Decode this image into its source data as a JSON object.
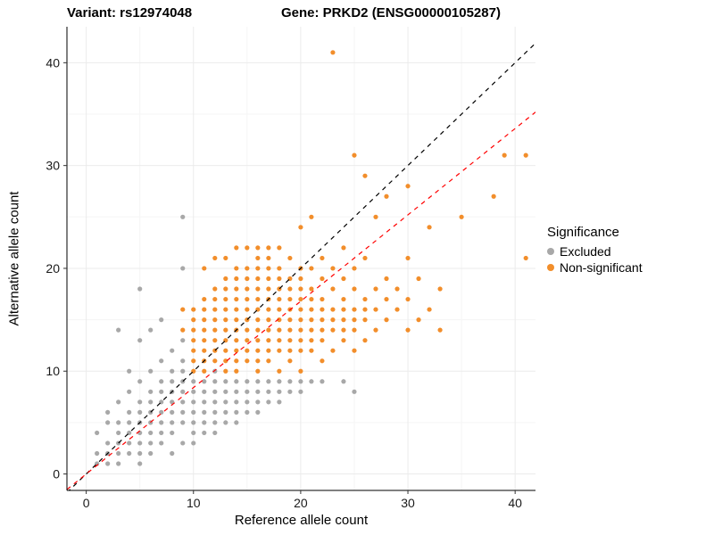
{
  "chart_data": {
    "type": "scatter",
    "title_left": "Variant: rs12974048",
    "title_right": "Gene: PRKD2 (ENSG00000105287)",
    "xlabel": "Reference allele count",
    "ylabel": "Alternative allele count",
    "legend_title": "Significance",
    "legend_position": "right",
    "grid": true,
    "xlim": [
      -1.8,
      41.9
    ],
    "ylim": [
      -1.6,
      43.5
    ],
    "x_ticks": [
      0,
      10,
      20,
      30,
      40
    ],
    "y_ticks": [
      0,
      10,
      20,
      30,
      40
    ],
    "reference_lines": [
      {
        "name": "identity",
        "slope": 1,
        "intercept": 0,
        "color": "#000000",
        "style": "dashed"
      },
      {
        "name": "fit",
        "slope": 0.84,
        "intercept": 0,
        "color": "#FF0000",
        "style": "dashed"
      }
    ],
    "grid_major_color": "#EBEBEB",
    "grid_minor_color": "#F5F5F5",
    "point_radius": 2.6,
    "series": [
      {
        "name": "Excluded",
        "color": "#A8A8A8",
        "points": [
          [
            1,
            1
          ],
          [
            1,
            2
          ],
          [
            1,
            4
          ],
          [
            2,
            1
          ],
          [
            2,
            2
          ],
          [
            2,
            3
          ],
          [
            2,
            5
          ],
          [
            2,
            6
          ],
          [
            3,
            1
          ],
          [
            3,
            2
          ],
          [
            3,
            3
          ],
          [
            3,
            4
          ],
          [
            3,
            5
          ],
          [
            3,
            7
          ],
          [
            3,
            14
          ],
          [
            4,
            2
          ],
          [
            4,
            3
          ],
          [
            4,
            4
          ],
          [
            4,
            5
          ],
          [
            4,
            6
          ],
          [
            4,
            8
          ],
          [
            4,
            10
          ],
          [
            5,
            1
          ],
          [
            5,
            2
          ],
          [
            5,
            3
          ],
          [
            5,
            4
          ],
          [
            5,
            5
          ],
          [
            5,
            6
          ],
          [
            5,
            7
          ],
          [
            5,
            9
          ],
          [
            5,
            13
          ],
          [
            5,
            18
          ],
          [
            6,
            2
          ],
          [
            6,
            3
          ],
          [
            6,
            4
          ],
          [
            6,
            5
          ],
          [
            6,
            6
          ],
          [
            6,
            7
          ],
          [
            6,
            8
          ],
          [
            6,
            10
          ],
          [
            6,
            14
          ],
          [
            7,
            3
          ],
          [
            7,
            4
          ],
          [
            7,
            5
          ],
          [
            7,
            6
          ],
          [
            7,
            7
          ],
          [
            7,
            8
          ],
          [
            7,
            9
          ],
          [
            7,
            11
          ],
          [
            7,
            15
          ],
          [
            8,
            2
          ],
          [
            8,
            4
          ],
          [
            8,
            5
          ],
          [
            8,
            6
          ],
          [
            8,
            7
          ],
          [
            8,
            8
          ],
          [
            8,
            9
          ],
          [
            8,
            10
          ],
          [
            8,
            12
          ],
          [
            9,
            3
          ],
          [
            9,
            5
          ],
          [
            9,
            6
          ],
          [
            9,
            7
          ],
          [
            9,
            8
          ],
          [
            9,
            9
          ],
          [
            9,
            10
          ],
          [
            9,
            11
          ],
          [
            9,
            13
          ],
          [
            9,
            20
          ],
          [
            9,
            25
          ],
          [
            10,
            3
          ],
          [
            10,
            4
          ],
          [
            10,
            5
          ],
          [
            10,
            6
          ],
          [
            10,
            7
          ],
          [
            10,
            8
          ],
          [
            10,
            9
          ],
          [
            11,
            4
          ],
          [
            11,
            5
          ],
          [
            11,
            6
          ],
          [
            11,
            7
          ],
          [
            11,
            8
          ],
          [
            11,
            9
          ],
          [
            12,
            4
          ],
          [
            12,
            5
          ],
          [
            12,
            6
          ],
          [
            12,
            7
          ],
          [
            12,
            8
          ],
          [
            12,
            9
          ],
          [
            12,
            10
          ],
          [
            13,
            5
          ],
          [
            13,
            6
          ],
          [
            13,
            7
          ],
          [
            13,
            8
          ],
          [
            13,
            9
          ],
          [
            14,
            5
          ],
          [
            14,
            6
          ],
          [
            14,
            7
          ],
          [
            14,
            8
          ],
          [
            14,
            9
          ],
          [
            15,
            6
          ],
          [
            15,
            7
          ],
          [
            15,
            8
          ],
          [
            15,
            9
          ],
          [
            16,
            6
          ],
          [
            16,
            7
          ],
          [
            16,
            8
          ],
          [
            16,
            9
          ],
          [
            17,
            7
          ],
          [
            17,
            8
          ],
          [
            17,
            9
          ],
          [
            18,
            7
          ],
          [
            18,
            8
          ],
          [
            18,
            9
          ],
          [
            19,
            8
          ],
          [
            19,
            9
          ],
          [
            20,
            8
          ],
          [
            20,
            9
          ],
          [
            21,
            9
          ],
          [
            22,
            9
          ],
          [
            24,
            9
          ],
          [
            25,
            8
          ]
        ]
      },
      {
        "name": "Non-significant",
        "color": "#F28E2B",
        "points": [
          [
            9,
            14
          ],
          [
            9,
            16
          ],
          [
            10,
            10
          ],
          [
            10,
            11
          ],
          [
            10,
            12
          ],
          [
            10,
            13
          ],
          [
            10,
            14
          ],
          [
            10,
            15
          ],
          [
            10,
            16
          ],
          [
            11,
            10
          ],
          [
            11,
            11
          ],
          [
            11,
            12
          ],
          [
            11,
            13
          ],
          [
            11,
            14
          ],
          [
            11,
            15
          ],
          [
            11,
            16
          ],
          [
            11,
            17
          ],
          [
            11,
            20
          ],
          [
            12,
            11
          ],
          [
            12,
            12
          ],
          [
            12,
            13
          ],
          [
            12,
            14
          ],
          [
            12,
            15
          ],
          [
            12,
            16
          ],
          [
            12,
            17
          ],
          [
            12,
            18
          ],
          [
            12,
            21
          ],
          [
            13,
            10
          ],
          [
            13,
            11
          ],
          [
            13,
            12
          ],
          [
            13,
            13
          ],
          [
            13,
            14
          ],
          [
            13,
            15
          ],
          [
            13,
            16
          ],
          [
            13,
            17
          ],
          [
            13,
            18
          ],
          [
            13,
            19
          ],
          [
            13,
            21
          ],
          [
            14,
            10
          ],
          [
            14,
            11
          ],
          [
            14,
            12
          ],
          [
            14,
            13
          ],
          [
            14,
            14
          ],
          [
            14,
            15
          ],
          [
            14,
            16
          ],
          [
            14,
            17
          ],
          [
            14,
            18
          ],
          [
            14,
            19
          ],
          [
            14,
            20
          ],
          [
            14,
            22
          ],
          [
            15,
            11
          ],
          [
            15,
            12
          ],
          [
            15,
            13
          ],
          [
            15,
            14
          ],
          [
            15,
            15
          ],
          [
            15,
            16
          ],
          [
            15,
            17
          ],
          [
            15,
            18
          ],
          [
            15,
            19
          ],
          [
            15,
            20
          ],
          [
            15,
            22
          ],
          [
            16,
            10
          ],
          [
            16,
            11
          ],
          [
            16,
            12
          ],
          [
            16,
            13
          ],
          [
            16,
            14
          ],
          [
            16,
            15
          ],
          [
            16,
            16
          ],
          [
            16,
            17
          ],
          [
            16,
            18
          ],
          [
            16,
            19
          ],
          [
            16,
            20
          ],
          [
            16,
            21
          ],
          [
            16,
            22
          ],
          [
            17,
            11
          ],
          [
            17,
            12
          ],
          [
            17,
            13
          ],
          [
            17,
            14
          ],
          [
            17,
            15
          ],
          [
            17,
            16
          ],
          [
            17,
            17
          ],
          [
            17,
            18
          ],
          [
            17,
            19
          ],
          [
            17,
            20
          ],
          [
            17,
            21
          ],
          [
            17,
            22
          ],
          [
            18,
            10
          ],
          [
            18,
            12
          ],
          [
            18,
            13
          ],
          [
            18,
            14
          ],
          [
            18,
            15
          ],
          [
            18,
            16
          ],
          [
            18,
            17
          ],
          [
            18,
            18
          ],
          [
            18,
            19
          ],
          [
            18,
            20
          ],
          [
            18,
            22
          ],
          [
            19,
            11
          ],
          [
            19,
            12
          ],
          [
            19,
            13
          ],
          [
            19,
            14
          ],
          [
            19,
            15
          ],
          [
            19,
            16
          ],
          [
            19,
            17
          ],
          [
            19,
            18
          ],
          [
            19,
            19
          ],
          [
            19,
            21
          ],
          [
            20,
            10
          ],
          [
            20,
            12
          ],
          [
            20,
            13
          ],
          [
            20,
            14
          ],
          [
            20,
            15
          ],
          [
            20,
            16
          ],
          [
            20,
            17
          ],
          [
            20,
            18
          ],
          [
            20,
            19
          ],
          [
            20,
            20
          ],
          [
            20,
            24
          ],
          [
            21,
            12
          ],
          [
            21,
            13
          ],
          [
            21,
            14
          ],
          [
            21,
            15
          ],
          [
            21,
            16
          ],
          [
            21,
            17
          ],
          [
            21,
            18
          ],
          [
            21,
            20
          ],
          [
            21,
            25
          ],
          [
            22,
            11
          ],
          [
            22,
            13
          ],
          [
            22,
            14
          ],
          [
            22,
            15
          ],
          [
            22,
            16
          ],
          [
            22,
            17
          ],
          [
            22,
            19
          ],
          [
            22,
            21
          ],
          [
            23,
            12
          ],
          [
            23,
            14
          ],
          [
            23,
            15
          ],
          [
            23,
            16
          ],
          [
            23,
            18
          ],
          [
            23,
            20
          ],
          [
            23,
            41
          ],
          [
            24,
            13
          ],
          [
            24,
            14
          ],
          [
            24,
            15
          ],
          [
            24,
            16
          ],
          [
            24,
            17
          ],
          [
            24,
            19
          ],
          [
            24,
            22
          ],
          [
            25,
            12
          ],
          [
            25,
            14
          ],
          [
            25,
            15
          ],
          [
            25,
            16
          ],
          [
            25,
            18
          ],
          [
            25,
            20
          ],
          [
            25,
            31
          ],
          [
            26,
            13
          ],
          [
            26,
            15
          ],
          [
            26,
            16
          ],
          [
            26,
            17
          ],
          [
            26,
            21
          ],
          [
            26,
            29
          ],
          [
            27,
            14
          ],
          [
            27,
            16
          ],
          [
            27,
            18
          ],
          [
            27,
            25
          ],
          [
            28,
            15
          ],
          [
            28,
            17
          ],
          [
            28,
            19
          ],
          [
            28,
            27
          ],
          [
            29,
            16
          ],
          [
            29,
            18
          ],
          [
            30,
            14
          ],
          [
            30,
            17
          ],
          [
            30,
            21
          ],
          [
            30,
            28
          ],
          [
            31,
            15
          ],
          [
            31,
            19
          ],
          [
            32,
            16
          ],
          [
            32,
            24
          ],
          [
            33,
            14
          ],
          [
            33,
            18
          ],
          [
            35,
            25
          ],
          [
            38,
            27
          ],
          [
            39,
            31
          ],
          [
            41,
            21
          ],
          [
            41,
            31
          ]
        ]
      }
    ]
  }
}
